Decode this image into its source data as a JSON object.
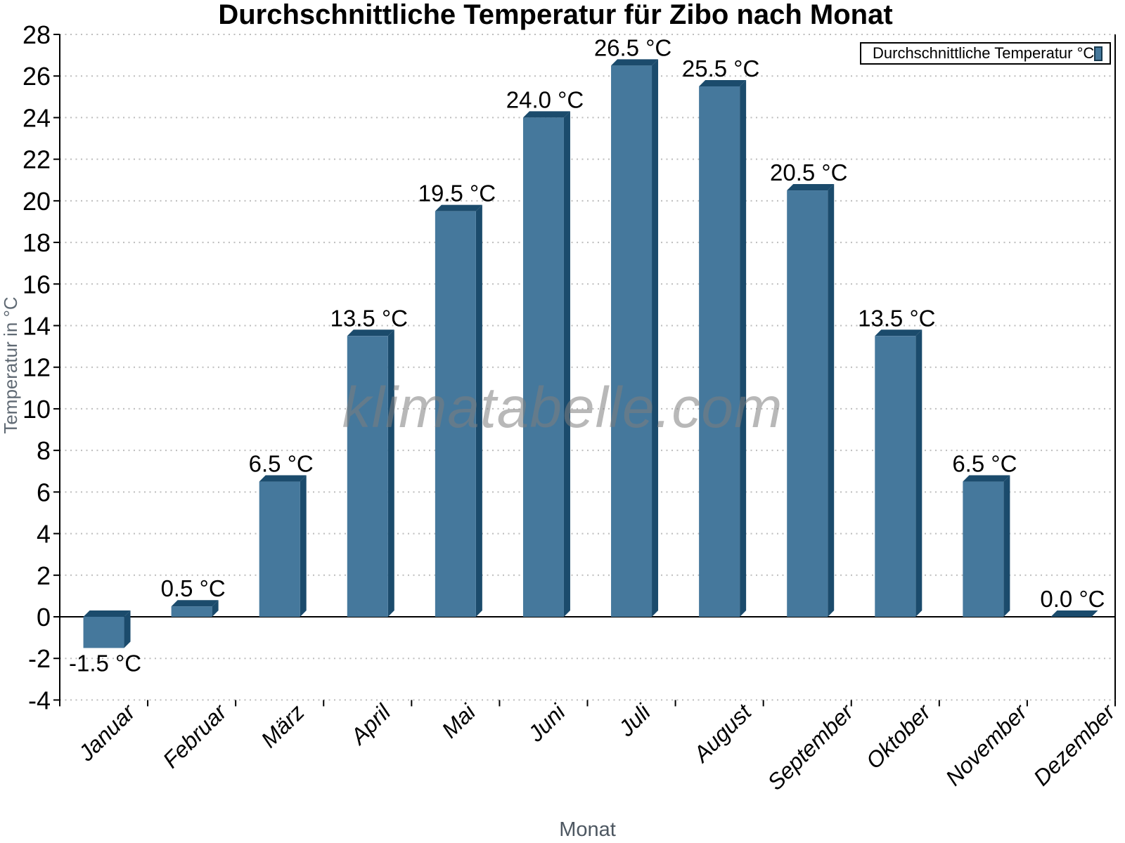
{
  "chart_data": {
    "type": "bar",
    "title": "Durchschnittliche Temperatur für Zibo nach Monat",
    "xlabel": "Monat",
    "ylabel": "Temperatur in °C",
    "categories": [
      "Januar",
      "Februar",
      "März",
      "April",
      "Mai",
      "Juni",
      "Juli",
      "August",
      "September",
      "Oktober",
      "November",
      "Dezember"
    ],
    "values": [
      -1.5,
      0.5,
      6.5,
      13.5,
      19.5,
      24.0,
      26.5,
      25.5,
      20.5,
      13.5,
      6.5,
      0.0
    ],
    "value_labels": [
      "-1.5 °C",
      "0.5 °C",
      "6.5 °C",
      "13.5 °C",
      "19.5 °C",
      "24.0 °C",
      "26.5 °C",
      "25.5 °C",
      "20.5 °C",
      "13.5 °C",
      "6.5 °C",
      "0.0 °C"
    ],
    "ylim": [
      -4,
      28
    ],
    "ytick_step": 2,
    "grid": {
      "horizontal": true,
      "style": "dotted"
    },
    "legend": {
      "label": "Durchschnittliche Temperatur °C",
      "position": "top-right"
    },
    "watermark": "klimatabelle.com",
    "colors": {
      "bar_face": "#45789C",
      "bar_bevel": "#1B4B6C",
      "grid_line": "#BDBDBD",
      "axis": "#000000",
      "tick_label": "#000000",
      "y_axis_title": "#5F6973",
      "x_axis_title": "#4D5761",
      "watermark": "#B4B4B4"
    }
  }
}
